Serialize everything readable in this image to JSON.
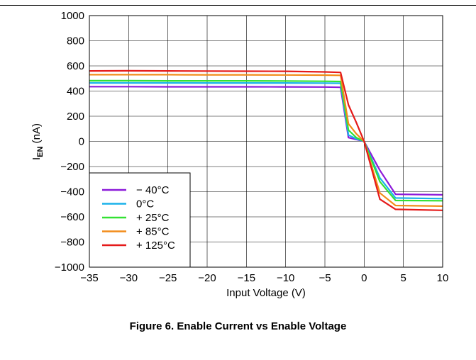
{
  "figure": {
    "caption": "Figure 6. Enable Current vs Enable Voltage"
  },
  "chart_data": {
    "type": "line",
    "xlabel": "Input Voltage (V)",
    "ylabel_main": "I",
    "ylabel_sub": "EN",
    "ylabel_unit": " (nA)",
    "xlim": [
      -35,
      10
    ],
    "ylim": [
      -1000,
      1000
    ],
    "xticks": [
      -35,
      -30,
      -25,
      -20,
      -15,
      -10,
      -5,
      0,
      5,
      10
    ],
    "xtick_labels": [
      "−35",
      "−30",
      "−25",
      "−20",
      "−15",
      "−10",
      "−5",
      "0",
      "5",
      "10"
    ],
    "yticks": [
      1000,
      800,
      600,
      400,
      200,
      0,
      -200,
      -400,
      -600,
      -800,
      -1000
    ],
    "ytick_labels": [
      "1000",
      "800",
      "600",
      "400",
      "200",
      "0",
      "−200",
      "−400",
      "−600",
      "−800",
      "−1000"
    ],
    "grid": true,
    "legend_position": "bottom-left",
    "series": [
      {
        "name": "− 40°C",
        "color": "#8c1ad9",
        "x": [
          -35,
          -30,
          -25,
          -20,
          -15,
          -10,
          -5,
          -3,
          -2,
          -1,
          0,
          2,
          4,
          10
        ],
        "y": [
          435,
          435,
          434,
          434,
          434,
          433,
          432,
          430,
          30,
          15,
          0,
          -230,
          -420,
          -425
        ]
      },
      {
        "name": "0°C",
        "color": "#1ab2ea",
        "x": [
          -35,
          -30,
          -25,
          -20,
          -15,
          -10,
          -5,
          -3,
          -2,
          -1,
          0,
          2,
          4,
          10
        ],
        "y": [
          465,
          465,
          465,
          464,
          464,
          464,
          463,
          462,
          50,
          20,
          0,
          -290,
          -450,
          -455
        ]
      },
      {
        "name": "+ 25°C",
        "color": "#33e133",
        "x": [
          -35,
          -30,
          -25,
          -20,
          -15,
          -10,
          -5,
          -3,
          -2,
          -1,
          0,
          2,
          4,
          10
        ],
        "y": [
          482,
          482,
          481,
          481,
          481,
          480,
          478,
          476,
          90,
          30,
          0,
          -320,
          -470,
          -472
        ]
      },
      {
        "name": "+ 85°C",
        "color": "#f28c1a",
        "x": [
          -35,
          -30,
          -25,
          -20,
          -15,
          -10,
          -5,
          -3,
          -2,
          -1,
          0,
          2,
          4,
          10
        ],
        "y": [
          530,
          530,
          530,
          529,
          529,
          528,
          527,
          525,
          140,
          60,
          0,
          -410,
          -510,
          -515
        ]
      },
      {
        "name": "+ 125°C",
        "color": "#e51a1a",
        "x": [
          -35,
          -30,
          -25,
          -20,
          -15,
          -10,
          -5,
          -3,
          -2,
          -1,
          0,
          2,
          4,
          10
        ],
        "y": [
          560,
          561,
          560,
          559,
          558,
          557,
          552,
          548,
          290,
          150,
          0,
          -460,
          -540,
          -548
        ]
      }
    ]
  }
}
